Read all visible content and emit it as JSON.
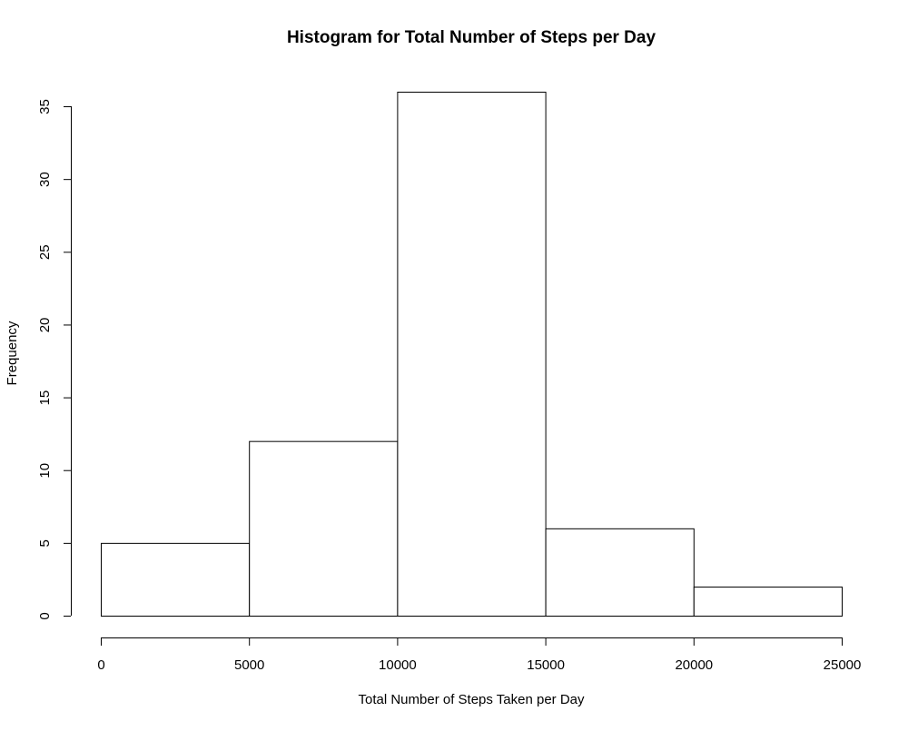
{
  "chart_data": {
    "type": "bar",
    "title": "Histogram for Total Number of Steps per Day",
    "xlabel": "Total Number of Steps Taken per Day",
    "ylabel": "Frequency",
    "bins": [
      {
        "start": 0,
        "end": 5000,
        "value": 5
      },
      {
        "start": 5000,
        "end": 10000,
        "value": 12
      },
      {
        "start": 10000,
        "end": 15000,
        "value": 36
      },
      {
        "start": 15000,
        "end": 20000,
        "value": 6
      },
      {
        "start": 20000,
        "end": 25000,
        "value": 2
      }
    ],
    "x_ticks": [
      "0",
      "5000",
      "10000",
      "15000",
      "20000",
      "25000"
    ],
    "y_ticks": [
      "0",
      "5",
      "10",
      "15",
      "20",
      "25",
      "30",
      "35"
    ],
    "xlim": [
      0,
      25000
    ],
    "ylim": [
      0,
      36
    ],
    "grid": false,
    "legend": "none",
    "bar_fill": "#ffffff",
    "bar_stroke": "#000000"
  }
}
